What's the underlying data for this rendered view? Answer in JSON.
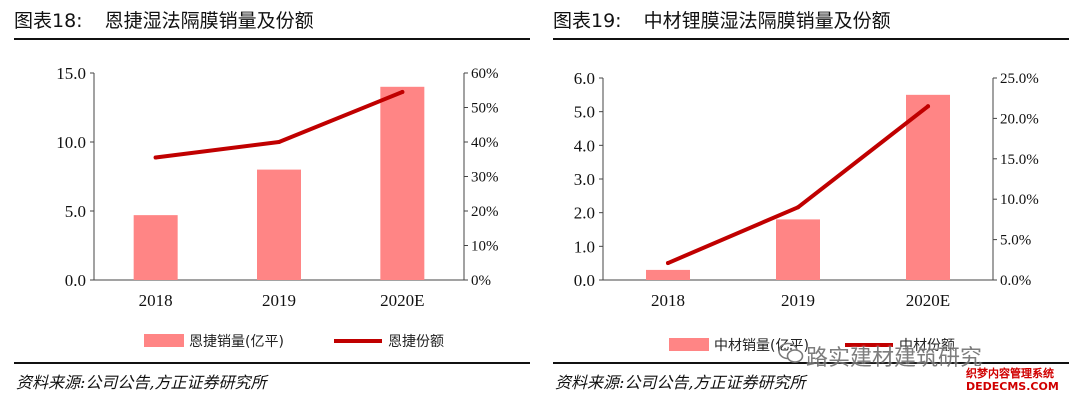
{
  "left": {
    "title_num": "图表18:",
    "title_text": "恩捷湿法隔膜销量及份额",
    "source": "资料来源:公司公告,方正证券研究所",
    "chart_data": {
      "type": "bar+line",
      "categories": [
        "2018",
        "2019",
        "2020E"
      ],
      "bar_series": {
        "name": "恩捷销量(亿平)",
        "values": [
          4.7,
          8.0,
          14.0
        ],
        "color": "#ff8585"
      },
      "line_series": {
        "name": "恩捷份额",
        "values": [
          0.355,
          0.4,
          0.545
        ],
        "color": "#c00000"
      },
      "y_left": {
        "ylim": [
          0,
          15
        ],
        "ticks": [
          "0.0",
          "5.0",
          "10.0",
          "15.0"
        ],
        "tick_values": [
          0,
          5,
          10,
          15
        ]
      },
      "y_right": {
        "ylim": [
          0,
          0.6
        ],
        "ticks": [
          "0%",
          "10%",
          "20%",
          "30%",
          "40%",
          "50%",
          "60%"
        ],
        "tick_values": [
          0,
          0.1,
          0.2,
          0.3,
          0.4,
          0.5,
          0.6
        ]
      },
      "legend": "bottom"
    }
  },
  "right": {
    "title_num": "图表19:",
    "title_text": "中材锂膜湿法隔膜销量及份额",
    "source": "资料来源:公司公告,方正证券研究所",
    "chart_data": {
      "type": "bar+line",
      "categories": [
        "2018",
        "2019",
        "2020E"
      ],
      "bar_series": {
        "name": "中材销量(亿平)",
        "values": [
          0.3,
          1.8,
          5.5
        ],
        "color": "#ff8585"
      },
      "line_series": {
        "name": "中材份额",
        "values": [
          0.021,
          0.09,
          0.215
        ],
        "color": "#c00000"
      },
      "y_left": {
        "ylim": [
          0,
          6
        ],
        "ticks": [
          "0.0",
          "1.0",
          "2.0",
          "3.0",
          "4.0",
          "5.0",
          "6.0"
        ],
        "tick_values": [
          0,
          1,
          2,
          3,
          4,
          5,
          6
        ]
      },
      "y_right": {
        "ylim": [
          0,
          0.25
        ],
        "ticks": [
          "0.0%",
          "5.0%",
          "10.0%",
          "15.0%",
          "20.0%",
          "25.0%"
        ],
        "tick_values": [
          0,
          0.05,
          0.1,
          0.15,
          0.2,
          0.25
        ]
      },
      "legend": "bottom"
    }
  },
  "watermark": {
    "text": "路实建材建筑研究",
    "badge_line1": "织梦内容管理系统",
    "badge_line2": "DEDECMS.COM"
  }
}
